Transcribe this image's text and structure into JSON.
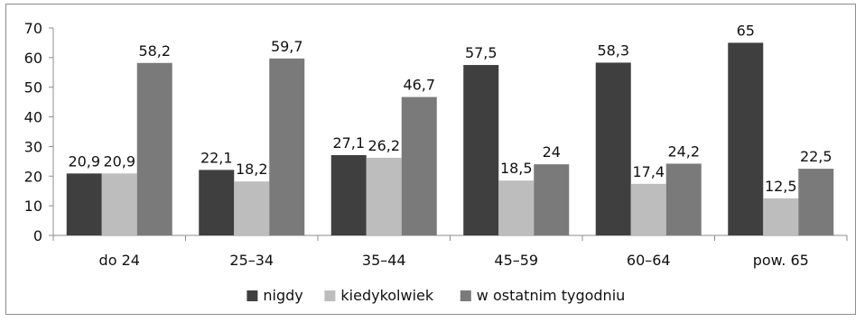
{
  "chart_data": {
    "type": "bar",
    "categories": [
      "do 24",
      "25–34",
      "35–44",
      "45–59",
      "60–64",
      "pow. 65"
    ],
    "series": [
      {
        "name": "nigdy",
        "color": "#3f3f3f",
        "values": [
          20.9,
          22.1,
          27.1,
          57.5,
          58.3,
          65
        ],
        "labels": [
          "20,9",
          "22,1",
          "27,1",
          "57,5",
          "58,3",
          "65"
        ]
      },
      {
        "name": "kiedykolwiek",
        "color": "#bdbdbd",
        "values": [
          20.9,
          18.2,
          26.2,
          18.5,
          17.4,
          12.5
        ],
        "labels": [
          "20,9",
          "18,2",
          "26,2",
          "18,5",
          "17,4",
          "12,5"
        ]
      },
      {
        "name": "w ostatnim tygodniu",
        "color": "#7a7a7a",
        "values": [
          58.2,
          59.7,
          46.7,
          24,
          24.2,
          22.5
        ],
        "labels": [
          "58,2",
          "59,7",
          "46,7",
          "24",
          "24,2",
          "22,5"
        ]
      }
    ],
    "y_ticks": [
      "0",
      "10",
      "20",
      "30",
      "40",
      "50",
      "60",
      "70"
    ],
    "ylim": [
      0,
      70
    ],
    "grid": false,
    "legend_position": "bottom"
  }
}
